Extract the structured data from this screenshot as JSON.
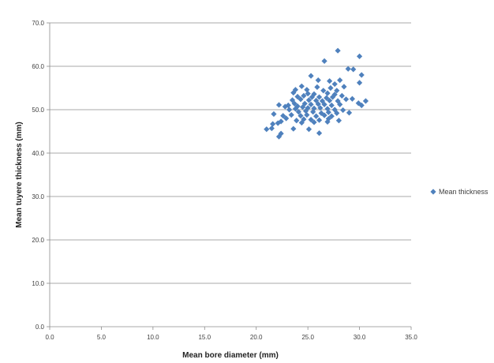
{
  "chart_data": {
    "type": "scatter",
    "xlabel": "Mean bore diameter (mm)",
    "ylabel": "Mean tuyere thickness (mm)",
    "xlim": [
      0,
      35
    ],
    "ylim": [
      0,
      70
    ],
    "x_ticks": [
      "0.0",
      "5.0",
      "10.0",
      "15.0",
      "20.0",
      "25.0",
      "30.0",
      "35.0"
    ],
    "y_ticks": [
      "0.0",
      "10.0",
      "20.0",
      "30.0",
      "40.0",
      "50.0",
      "60.0",
      "70.0"
    ],
    "grid": "horizontal",
    "legend_position": "right",
    "series": [
      {
        "name": "Mean thickness",
        "color": "#4f81bd",
        "marker": "diamond",
        "points": [
          [
            27.9,
            63.6
          ],
          [
            30.0,
            62.3
          ],
          [
            26.6,
            61.2
          ],
          [
            28.9,
            59.4
          ],
          [
            29.4,
            59.3
          ],
          [
            30.2,
            58.0
          ],
          [
            25.3,
            57.8
          ],
          [
            26.0,
            56.8
          ],
          [
            27.1,
            56.6
          ],
          [
            28.1,
            56.8
          ],
          [
            30.0,
            56.2
          ],
          [
            27.6,
            55.9
          ],
          [
            24.4,
            55.4
          ],
          [
            25.9,
            55.2
          ],
          [
            27.2,
            55.0
          ],
          [
            28.5,
            55.3
          ],
          [
            23.8,
            54.6
          ],
          [
            24.9,
            54.6
          ],
          [
            26.5,
            54.4
          ],
          [
            27.8,
            54.4
          ],
          [
            23.6,
            53.9
          ],
          [
            25.0,
            53.7
          ],
          [
            25.6,
            53.6
          ],
          [
            26.9,
            53.8
          ],
          [
            27.6,
            53.5
          ],
          [
            28.3,
            53.2
          ],
          [
            24.0,
            53.0
          ],
          [
            24.6,
            53.2
          ],
          [
            25.4,
            52.9
          ],
          [
            26.1,
            52.9
          ],
          [
            26.8,
            52.7
          ],
          [
            27.4,
            52.9
          ],
          [
            28.7,
            52.4
          ],
          [
            29.3,
            52.5
          ],
          [
            22.2,
            51.1
          ],
          [
            23.1,
            51.0
          ],
          [
            23.5,
            52.2
          ],
          [
            24.3,
            52.4
          ],
          [
            25.1,
            52.2
          ],
          [
            25.8,
            52.1
          ],
          [
            26.4,
            52.0
          ],
          [
            27.1,
            52.1
          ],
          [
            27.9,
            52.0
          ],
          [
            30.6,
            52.0
          ],
          [
            22.8,
            50.7
          ],
          [
            23.7,
            51.4
          ],
          [
            24.0,
            50.8
          ],
          [
            24.7,
            51.4
          ],
          [
            25.3,
            51.2
          ],
          [
            26.0,
            51.3
          ],
          [
            26.6,
            51.2
          ],
          [
            27.3,
            51.0
          ],
          [
            28.1,
            51.2
          ],
          [
            29.9,
            51.5
          ],
          [
            30.2,
            51.0
          ],
          [
            23.2,
            50.0
          ],
          [
            23.8,
            50.2
          ],
          [
            24.5,
            50.6
          ],
          [
            25.0,
            50.4
          ],
          [
            25.6,
            50.3
          ],
          [
            26.2,
            50.4
          ],
          [
            26.9,
            50.2
          ],
          [
            27.6,
            50.0
          ],
          [
            28.4,
            49.9
          ],
          [
            24.1,
            49.5
          ],
          [
            24.8,
            49.7
          ],
          [
            25.5,
            49.5
          ],
          [
            26.3,
            49.2
          ],
          [
            27.0,
            49.4
          ],
          [
            27.8,
            49.2
          ],
          [
            29.0,
            49.3
          ],
          [
            21.7,
            49.0
          ],
          [
            22.6,
            48.6
          ],
          [
            23.4,
            48.8
          ],
          [
            24.3,
            48.6
          ],
          [
            24.9,
            48.8
          ],
          [
            25.8,
            48.5
          ],
          [
            26.6,
            48.7
          ],
          [
            27.3,
            48.5
          ],
          [
            22.9,
            48.0
          ],
          [
            23.9,
            47.5
          ],
          [
            24.6,
            47.8
          ],
          [
            25.3,
            47.7
          ],
          [
            26.1,
            47.6
          ],
          [
            27.0,
            47.9
          ],
          [
            28.0,
            47.5
          ],
          [
            22.4,
            47.3
          ],
          [
            24.4,
            47.0
          ],
          [
            25.6,
            47.1
          ],
          [
            26.9,
            47.2
          ],
          [
            21.6,
            46.7
          ],
          [
            22.1,
            46.9
          ],
          [
            21.0,
            45.5
          ],
          [
            21.5,
            45.7
          ],
          [
            23.6,
            45.6
          ],
          [
            25.1,
            45.5
          ],
          [
            26.1,
            44.6
          ],
          [
            22.4,
            44.5
          ],
          [
            22.2,
            43.8
          ]
        ]
      }
    ]
  }
}
